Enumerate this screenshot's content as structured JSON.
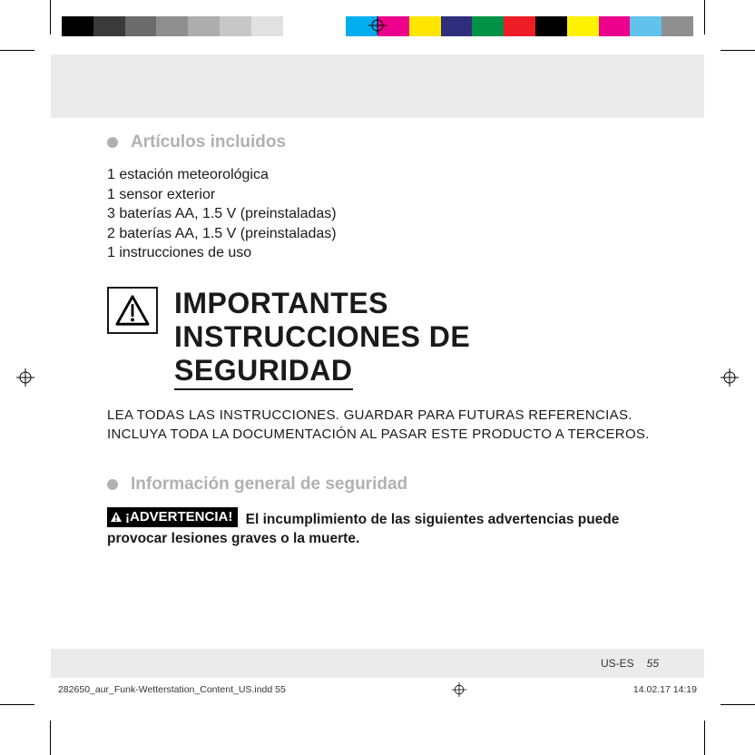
{
  "colorBar": [
    "#000000",
    "#3a3a3a",
    "#6b6b6b",
    "#8f8f8f",
    "#adadad",
    "#c7c7c7",
    "#e1e1e1",
    "#ffffff",
    "#ffffff",
    "#00aeef",
    "#ed008c",
    "#ffe600",
    "#2f2e7d",
    "#009247",
    "#ee1c25",
    "#000000",
    "#fff200",
    "#ec008c",
    "#61c3ec",
    "#8f8f8f"
  ],
  "sections": {
    "included": {
      "title": "Artículos incluidos",
      "items": [
        "1 estación meteorológica",
        "1 sensor exterior",
        "3 baterías AA, 1.5 V (preinstaladas)",
        "2 baterías AA, 1.5 V (preinstaladas)",
        "1 instrucciones de uso"
      ]
    },
    "safety_title_l1": "IMPORTANTES",
    "safety_title_l2": "INSTRUCCIONES DE",
    "safety_title_l3": "SEGURIDAD",
    "read_all": "LEA TODAS LAS INSTRUCCIONES. GUARDAR PARA FUTURAS REFERENCIAS. INCLUYA TODA LA DOCUMENTACIÓN AL PASAR ESTE PRODUCTO A TERCEROS.",
    "general_info_title": "Información general de seguridad",
    "adv_badge": "¡ADVERTENCIA!",
    "adv_text": " El incumplimiento de las siguientes advertencias puede provocar lesiones graves o la muerte."
  },
  "footer": {
    "lang": "US-ES",
    "page": "55"
  },
  "slug": {
    "file": "282650_aur_Funk-Wetterstation_Content_US.indd   55",
    "stamp": "14.02.17   14:19"
  },
  "style": {
    "gray_text": "#b1b1b1",
    "body_text": "#1a1a1a",
    "band_bg": "#ebebeb"
  }
}
